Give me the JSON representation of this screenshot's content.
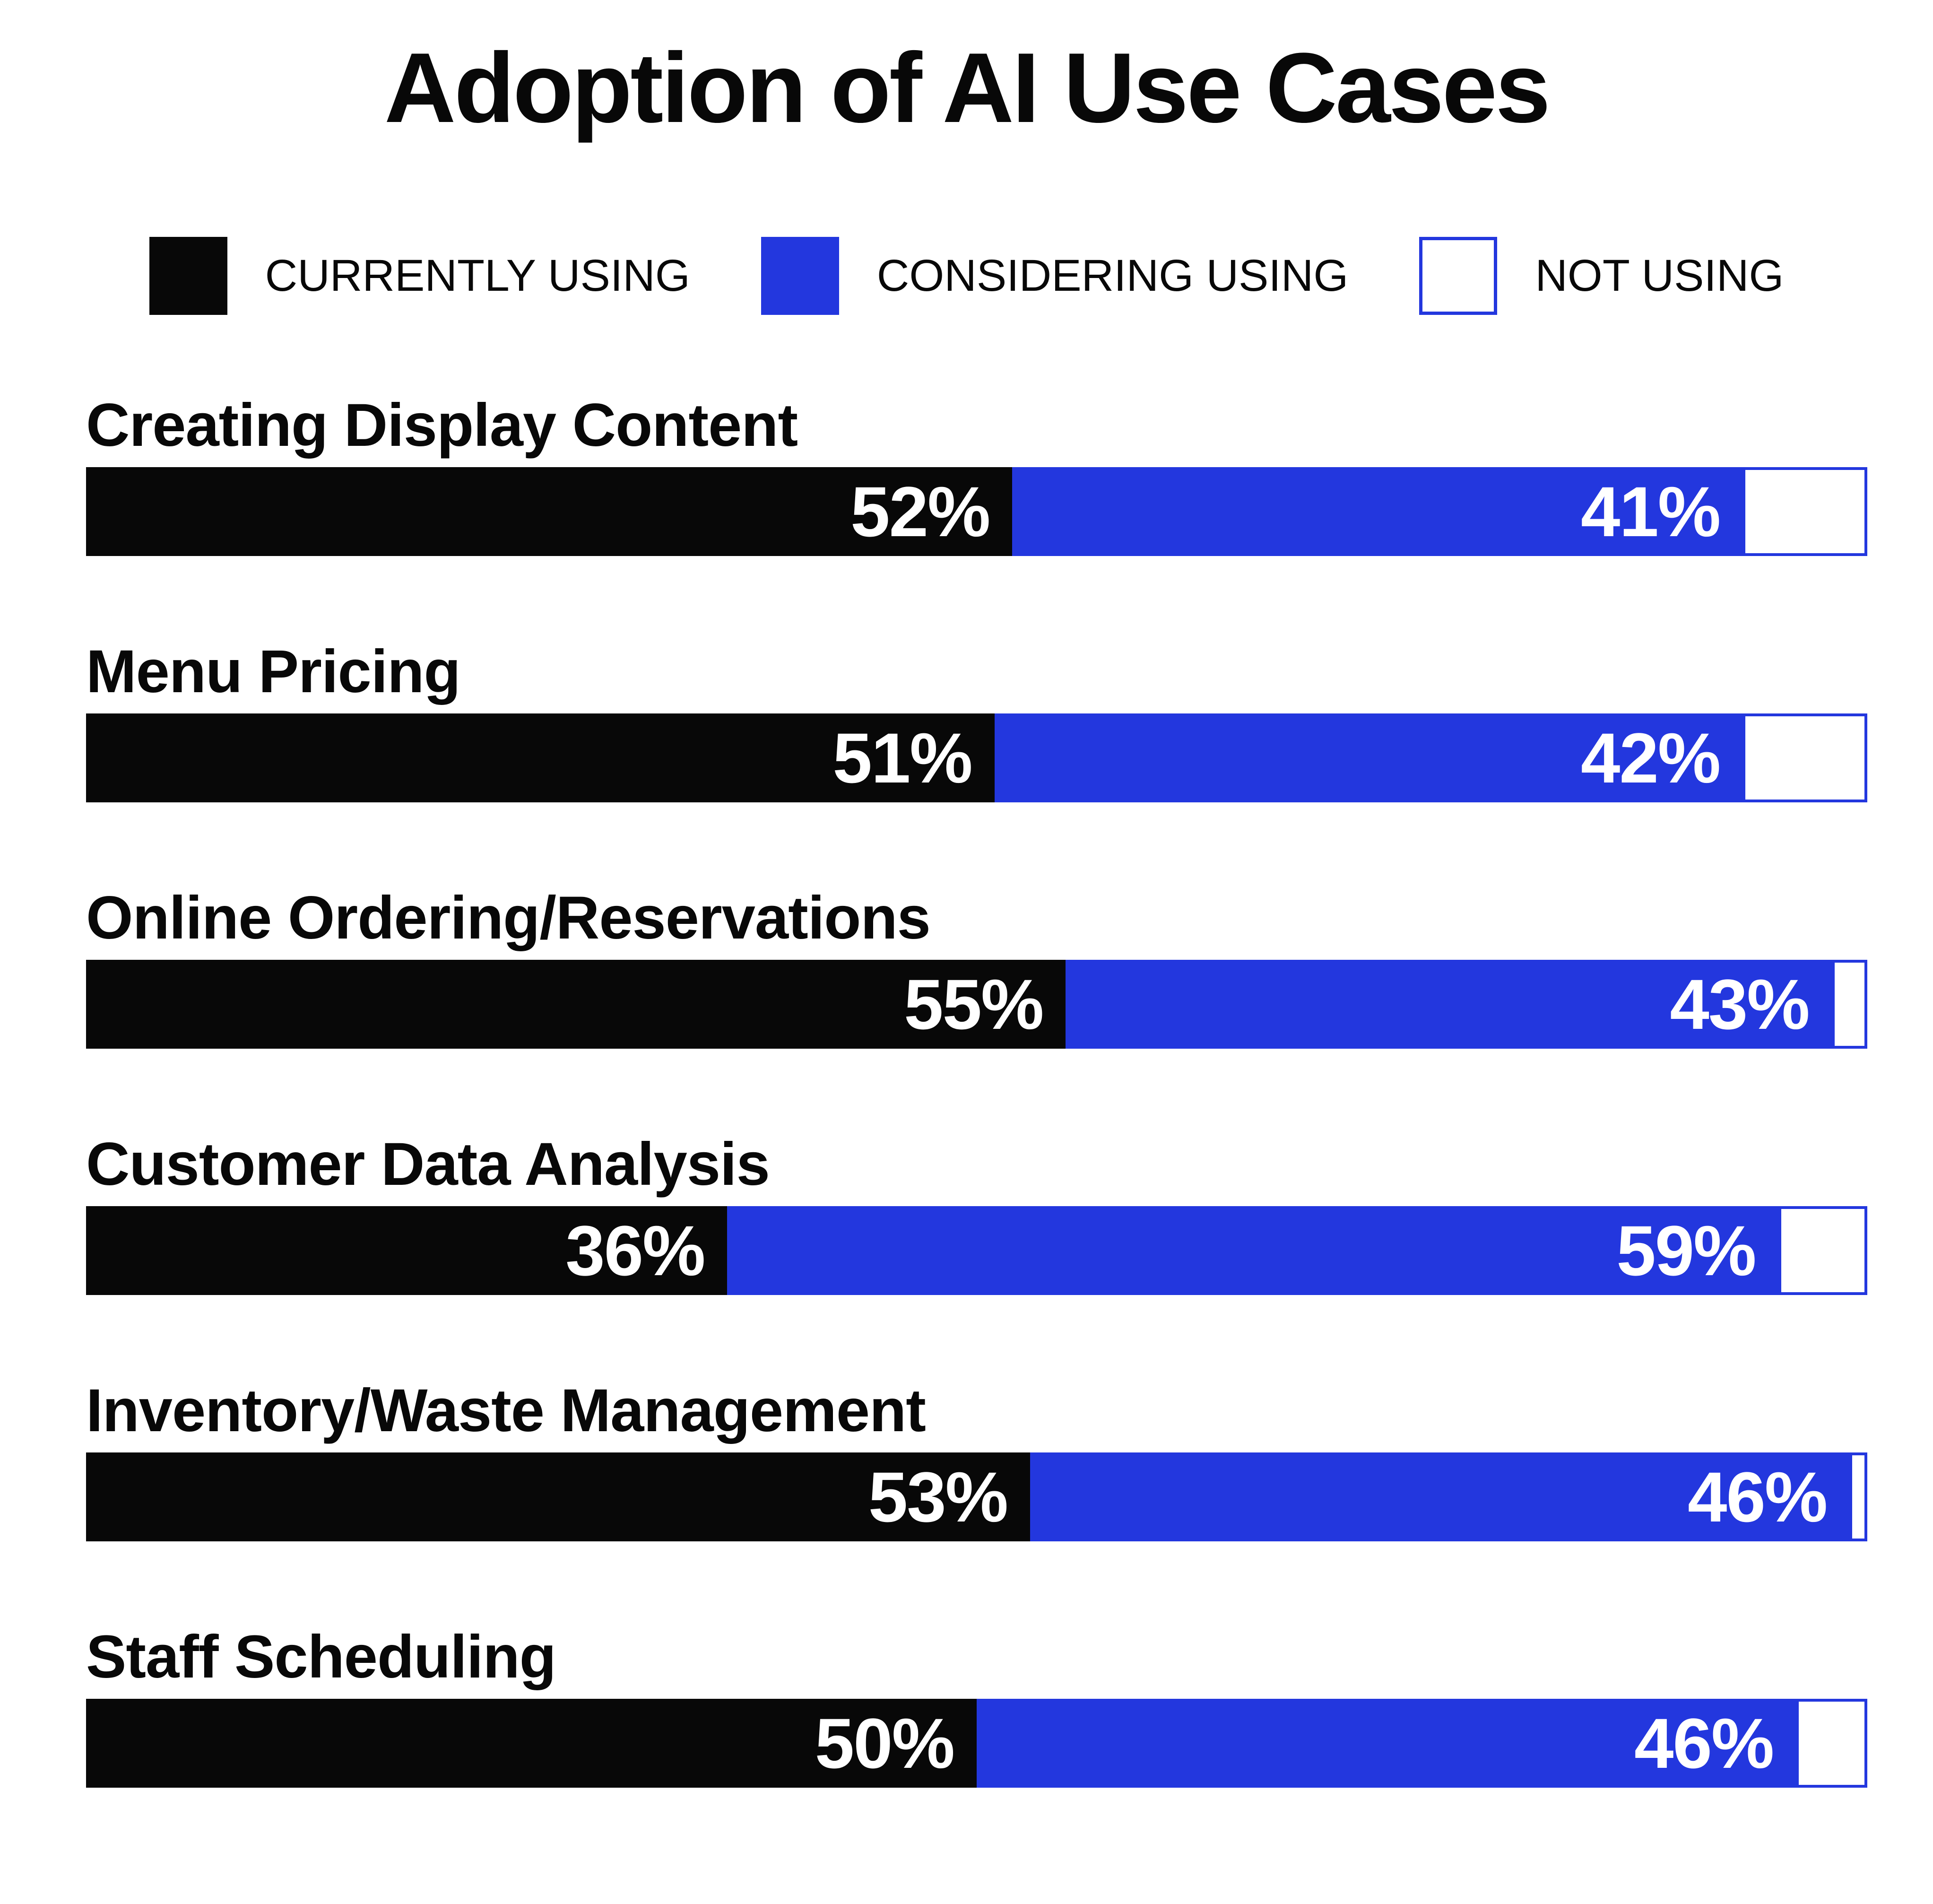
{
  "title": "Adoption of AI Use Cases",
  "colors": {
    "black": "#080808",
    "blue": "#2337de",
    "white": "#ffffff"
  },
  "legend": [
    {
      "label": "CURRENTLY USING"
    },
    {
      "label": "CONSIDERING USING"
    },
    {
      "label": "NOT USING"
    }
  ],
  "rows": [
    {
      "label": "Creating Display Content",
      "currently": 52,
      "considering": 41,
      "not": 7,
      "currently_label": "52%",
      "considering_label": "41%"
    },
    {
      "label": "Menu Pricing",
      "currently": 51,
      "considering": 42,
      "not": 7,
      "currently_label": "51%",
      "considering_label": "42%"
    },
    {
      "label": "Online Ordering/Reservations",
      "currently": 55,
      "considering": 43,
      "not": 2,
      "currently_label": "55%",
      "considering_label": "43%"
    },
    {
      "label": "Customer Data Analysis",
      "currently": 36,
      "considering": 59,
      "not": 5,
      "currently_label": "36%",
      "considering_label": "59%"
    },
    {
      "label": "Inventory/Waste Management",
      "currently": 53,
      "considering": 46,
      "not": 1,
      "currently_label": "53%",
      "considering_label": "46%"
    },
    {
      "label": "Staff Scheduling",
      "currently": 50,
      "considering": 46,
      "not": 4,
      "currently_label": "50%",
      "considering_label": "46%"
    }
  ],
  "chart_data": {
    "type": "bar",
    "orientation": "horizontal",
    "stacked": true,
    "title": "Adoption of AI Use Cases",
    "categories": [
      "Creating Display Content",
      "Menu Pricing",
      "Online Ordering/Reservations",
      "Customer Data Analysis",
      "Inventory/Waste Management",
      "Staff Scheduling"
    ],
    "series": [
      {
        "name": "Currently Using",
        "color": "#080808",
        "values": [
          52,
          51,
          55,
          36,
          53,
          50
        ]
      },
      {
        "name": "Considering Using",
        "color": "#2337de",
        "values": [
          41,
          42,
          43,
          59,
          46,
          46
        ]
      },
      {
        "name": "Not Using",
        "color": "#ffffff",
        "values": [
          7,
          7,
          2,
          5,
          1,
          4
        ]
      }
    ],
    "value_format": "percent",
    "xlim": [
      0,
      100
    ],
    "legend_position": "top",
    "grid": false,
    "data_labels": "inside right end of segment, white bold; shown only on first two series"
  }
}
